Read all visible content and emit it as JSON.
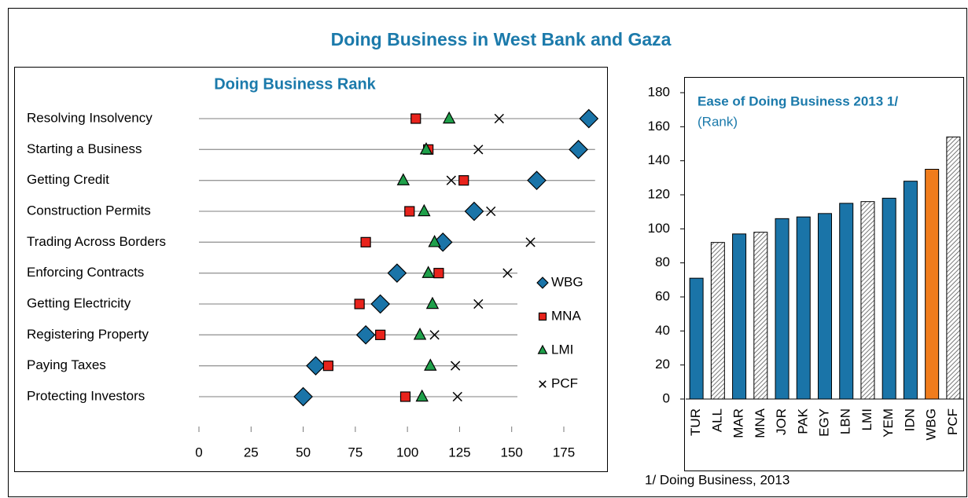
{
  "title": "Doing Business in West Bank and Gaza",
  "chart_data": [
    {
      "type": "dot",
      "title": "Doing Business Rank",
      "categories": [
        "Resolving Insolvency",
        "Starting a Business",
        "Getting Credit",
        "Construction Permits",
        "Trading Across Borders",
        "Enforcing Contracts",
        "Getting Electricity",
        "Registering Property",
        "Paying Taxes",
        "Protecting Investors"
      ],
      "series": [
        {
          "name": "WBG",
          "color": "#1a74a8",
          "marker": "diamond",
          "values": [
            187,
            182,
            162,
            132,
            117,
            95,
            87,
            80,
            56,
            50
          ]
        },
        {
          "name": "MNA",
          "color": "#e8231c",
          "marker": "square",
          "values": [
            104,
            110,
            127,
            101,
            80,
            115,
            77,
            87,
            62,
            99
          ]
        },
        {
          "name": "LMI",
          "color": "#1fa04a",
          "marker": "triangle",
          "values": [
            120,
            109,
            98,
            108,
            113,
            110,
            112,
            106,
            111,
            107
          ]
        },
        {
          "name": "PCF",
          "color": "#000000",
          "marker": "x",
          "values": [
            144,
            134,
            121,
            140,
            159,
            148,
            134,
            113,
            123,
            124
          ]
        }
      ],
      "xlim": [
        0,
        190
      ],
      "xticks": [
        0,
        25,
        50,
        75,
        100,
        125,
        150,
        175
      ]
    },
    {
      "type": "bar",
      "title": "Ease of Doing Business 2013 1/",
      "subtitle": "(Rank)",
      "categories": [
        "TUR",
        "ALL",
        "MAR",
        "MNA",
        "JOR",
        "PAK",
        "EGY",
        "LBN",
        "LMI",
        "YEM",
        "IDN",
        "WBG",
        "PCF"
      ],
      "values": [
        71,
        92,
        97,
        98,
        106,
        107,
        109,
        115,
        116,
        118,
        128,
        135,
        154
      ],
      "colors": [
        "#1a74a8",
        "#ffffff",
        "#1a74a8",
        "#ffffff",
        "#1a74a8",
        "#1a74a8",
        "#1a74a8",
        "#1a74a8",
        "#ffffff",
        "#1a74a8",
        "#1a74a8",
        "#f07c1c",
        "#ffffff"
      ],
      "hatched": [
        false,
        true,
        false,
        true,
        false,
        false,
        false,
        false,
        true,
        false,
        false,
        false,
        true
      ],
      "ylim": [
        0,
        180
      ],
      "yticks": [
        0,
        20,
        40,
        60,
        80,
        100,
        120,
        140,
        160,
        180
      ],
      "note": "1/ Doing Business, 2013"
    }
  ]
}
